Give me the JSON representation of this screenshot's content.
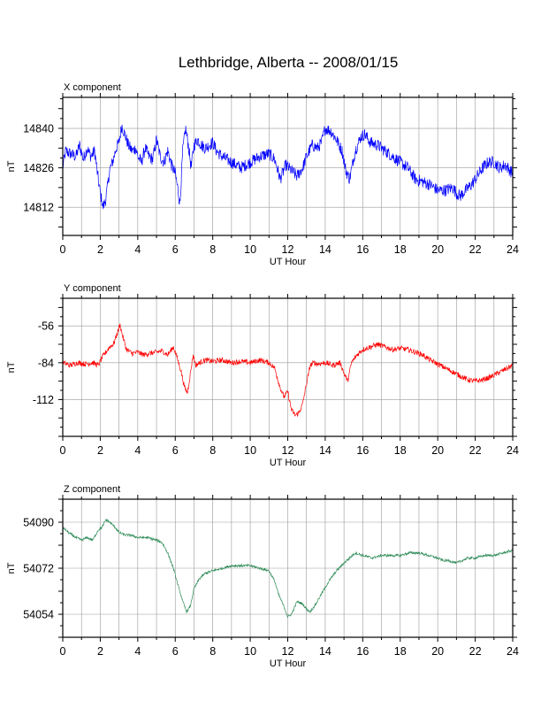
{
  "title": "Lethbridge, Alberta -- 2008/01/15",
  "chart_data": [
    {
      "type": "line",
      "panel_label": "X component",
      "xlabel": "UT Hour",
      "ylabel": "nT",
      "xlim": [
        0,
        24
      ],
      "ylim": [
        14802,
        14851
      ],
      "x_ticks": [
        "0",
        "2",
        "4",
        "6",
        "8",
        "10",
        "12",
        "14",
        "16",
        "18",
        "20",
        "22",
        "24"
      ],
      "y_ticks": [
        "14812",
        "14826",
        "14840"
      ],
      "grid": true,
      "color": "#0000ff",
      "series": [
        {
          "noise": 2.2,
          "points": [
            [
              0,
              14826
            ],
            [
              0.15,
              14832
            ],
            [
              0.4,
              14831
            ],
            [
              0.7,
              14830
            ],
            [
              0.9,
              14834
            ],
            [
              1.1,
              14829
            ],
            [
              1.3,
              14833
            ],
            [
              1.5,
              14830
            ],
            [
              1.7,
              14832
            ],
            [
              1.85,
              14824
            ],
            [
              2.0,
              14817
            ],
            [
              2.15,
              14812
            ],
            [
              2.3,
              14815
            ],
            [
              2.5,
              14825
            ],
            [
              2.7,
              14829
            ],
            [
              2.85,
              14833
            ],
            [
              3.0,
              14835
            ],
            [
              3.15,
              14841
            ],
            [
              3.3,
              14838
            ],
            [
              3.5,
              14834
            ],
            [
              3.7,
              14832
            ],
            [
              3.9,
              14833
            ],
            [
              4.0,
              14830
            ],
            [
              4.2,
              14828
            ],
            [
              4.4,
              14833
            ],
            [
              4.6,
              14830
            ],
            [
              4.8,
              14829
            ],
            [
              5.0,
              14836
            ],
            [
              5.2,
              14830
            ],
            [
              5.4,
              14828
            ],
            [
              5.6,
              14832
            ],
            [
              5.8,
              14827
            ],
            [
              6.0,
              14824
            ],
            [
              6.15,
              14818
            ],
            [
              6.25,
              14813
            ],
            [
              6.4,
              14832
            ],
            [
              6.55,
              14840
            ],
            [
              6.7,
              14834
            ],
            [
              6.85,
              14826
            ],
            [
              7.0,
              14834
            ],
            [
              7.2,
              14836
            ],
            [
              7.4,
              14834
            ],
            [
              7.6,
              14833
            ],
            [
              7.8,
              14834
            ],
            [
              8.0,
              14835
            ],
            [
              8.2,
              14832
            ],
            [
              8.5,
              14830
            ],
            [
              9.0,
              14828
            ],
            [
              9.5,
              14826
            ],
            [
              10.0,
              14828
            ],
            [
              10.5,
              14830
            ],
            [
              11.0,
              14831
            ],
            [
              11.3,
              14829
            ],
            [
              11.6,
              14822
            ],
            [
              11.9,
              14827
            ],
            [
              12.2,
              14825
            ],
            [
              12.5,
              14823
            ],
            [
              12.8,
              14826
            ],
            [
              13.0,
              14830
            ],
            [
              13.3,
              14834
            ],
            [
              13.6,
              14833
            ],
            [
              13.8,
              14835
            ],
            [
              14.0,
              14840
            ],
            [
              14.3,
              14839
            ],
            [
              14.6,
              14836
            ],
            [
              14.9,
              14832
            ],
            [
              15.1,
              14825
            ],
            [
              15.3,
              14822
            ],
            [
              15.6,
              14832
            ],
            [
              15.9,
              14837
            ],
            [
              16.1,
              14838
            ],
            [
              16.4,
              14835
            ],
            [
              16.8,
              14834
            ],
            [
              17.2,
              14832
            ],
            [
              17.6,
              14830
            ],
            [
              18.0,
              14828
            ],
            [
              18.4,
              14826
            ],
            [
              18.8,
              14822
            ],
            [
              19.2,
              14821
            ],
            [
              19.6,
              14820
            ],
            [
              20.0,
              14818
            ],
            [
              20.4,
              14818
            ],
            [
              20.8,
              14819
            ],
            [
              21.0,
              14817
            ],
            [
              21.2,
              14816
            ],
            [
              21.5,
              14818
            ],
            [
              21.8,
              14820
            ],
            [
              22.1,
              14823
            ],
            [
              22.4,
              14826
            ],
            [
              22.7,
              14828
            ],
            [
              23.0,
              14828
            ],
            [
              23.3,
              14826
            ],
            [
              23.6,
              14827
            ],
            [
              24.0,
              14824
            ]
          ]
        }
      ]
    },
    {
      "type": "line",
      "panel_label": "Y component",
      "xlabel": "UT Hour",
      "ylabel": "nT",
      "xlim": [
        0,
        24
      ],
      "ylim": [
        -140,
        -35
      ],
      "x_ticks": [
        "0",
        "2",
        "4",
        "6",
        "8",
        "10",
        "12",
        "14",
        "16",
        "18",
        "20",
        "22",
        "24"
      ],
      "y_ticks": [
        "-56",
        "-84",
        "-112"
      ],
      "grid": true,
      "color": "#ff0000",
      "series": [
        {
          "noise": 2.0,
          "points": [
            [
              0,
              -84
            ],
            [
              0.4,
              -86
            ],
            [
              0.8,
              -84
            ],
            [
              1.2,
              -85
            ],
            [
              1.6,
              -84
            ],
            [
              1.9,
              -86
            ],
            [
              2.1,
              -80
            ],
            [
              2.3,
              -76
            ],
            [
              2.5,
              -72
            ],
            [
              2.7,
              -70
            ],
            [
              2.9,
              -62
            ],
            [
              3.05,
              -55
            ],
            [
              3.2,
              -64
            ],
            [
              3.4,
              -74
            ],
            [
              3.7,
              -77
            ],
            [
              4.0,
              -76
            ],
            [
              4.3,
              -78
            ],
            [
              4.6,
              -77
            ],
            [
              5.0,
              -76
            ],
            [
              5.3,
              -75
            ],
            [
              5.6,
              -78
            ],
            [
              5.9,
              -72
            ],
            [
              6.1,
              -80
            ],
            [
              6.3,
              -90
            ],
            [
              6.5,
              -103
            ],
            [
              6.65,
              -107
            ],
            [
              6.8,
              -93
            ],
            [
              6.95,
              -78
            ],
            [
              7.1,
              -86
            ],
            [
              7.3,
              -84
            ],
            [
              7.6,
              -82
            ],
            [
              8.0,
              -83
            ],
            [
              8.5,
              -82
            ],
            [
              9.0,
              -84
            ],
            [
              9.5,
              -83
            ],
            [
              10.0,
              -84
            ],
            [
              10.5,
              -82
            ],
            [
              11.0,
              -84
            ],
            [
              11.3,
              -88
            ],
            [
              11.6,
              -103
            ],
            [
              11.8,
              -110
            ],
            [
              12.0,
              -106
            ],
            [
              12.2,
              -120
            ],
            [
              12.4,
              -124
            ],
            [
              12.6,
              -122
            ],
            [
              12.8,
              -115
            ],
            [
              13.0,
              -100
            ],
            [
              13.2,
              -86
            ],
            [
              13.4,
              -84
            ],
            [
              13.6,
              -85
            ],
            [
              14.0,
              -84
            ],
            [
              14.4,
              -86
            ],
            [
              14.8,
              -84
            ],
            [
              15.0,
              -92
            ],
            [
              15.2,
              -98
            ],
            [
              15.4,
              -84
            ],
            [
              15.7,
              -78
            ],
            [
              16.0,
              -74
            ],
            [
              16.4,
              -72
            ],
            [
              16.8,
              -70
            ],
            [
              17.2,
              -72
            ],
            [
              17.6,
              -74
            ],
            [
              18.0,
              -73
            ],
            [
              18.4,
              -74
            ],
            [
              18.8,
              -76
            ],
            [
              19.2,
              -78
            ],
            [
              19.6,
              -82
            ],
            [
              20.0,
              -85
            ],
            [
              20.4,
              -88
            ],
            [
              20.8,
              -91
            ],
            [
              21.2,
              -94
            ],
            [
              21.6,
              -97
            ],
            [
              22.0,
              -98
            ],
            [
              22.4,
              -97
            ],
            [
              22.8,
              -95
            ],
            [
              23.2,
              -92
            ],
            [
              23.6,
              -89
            ],
            [
              24.0,
              -86
            ]
          ]
        }
      ]
    },
    {
      "type": "line",
      "panel_label": "Z component",
      "xlabel": "UT Hour",
      "ylabel": "nT",
      "xlim": [
        0,
        24
      ],
      "ylim": [
        54045,
        54099
      ],
      "x_ticks": [
        "0",
        "2",
        "4",
        "6",
        "8",
        "10",
        "12",
        "14",
        "16",
        "18",
        "20",
        "22",
        "24"
      ],
      "y_ticks": [
        "54054",
        "54072",
        "54090"
      ],
      "grid": true,
      "color": "#2e8b57",
      "series": [
        {
          "noise": 0.5,
          "points": [
            [
              0,
              54088
            ],
            [
              0.3,
              54086
            ],
            [
              0.7,
              54084
            ],
            [
              1.0,
              54083
            ],
            [
              1.3,
              54084
            ],
            [
              1.6,
              54083
            ],
            [
              1.9,
              54087
            ],
            [
              2.1,
              54088
            ],
            [
              2.3,
              54091
            ],
            [
              2.5,
              54090
            ],
            [
              2.8,
              54088
            ],
            [
              3.0,
              54086
            ],
            [
              3.3,
              54085
            ],
            [
              3.6,
              54085
            ],
            [
              4.0,
              54084
            ],
            [
              4.5,
              54084
            ],
            [
              5.0,
              54083
            ],
            [
              5.3,
              54082
            ],
            [
              5.6,
              54078
            ],
            [
              5.9,
              54072
            ],
            [
              6.2,
              54064
            ],
            [
              6.4,
              54059
            ],
            [
              6.6,
              54055
            ],
            [
              6.8,
              54057
            ],
            [
              7.0,
              54064
            ],
            [
              7.3,
              54068
            ],
            [
              7.6,
              54070
            ],
            [
              8.0,
              54071
            ],
            [
              8.5,
              54072
            ],
            [
              9.0,
              54073
            ],
            [
              9.5,
              54073
            ],
            [
              10.0,
              54073
            ],
            [
              10.5,
              54072
            ],
            [
              11.0,
              54071
            ],
            [
              11.3,
              54067
            ],
            [
              11.5,
              54062
            ],
            [
              11.8,
              54057
            ],
            [
              12.0,
              54053
            ],
            [
              12.2,
              54054
            ],
            [
              12.5,
              54059
            ],
            [
              12.8,
              54058
            ],
            [
              13.0,
              54056
            ],
            [
              13.2,
              54055
            ],
            [
              13.5,
              54058
            ],
            [
              13.8,
              54062
            ],
            [
              14.2,
              54067
            ],
            [
              14.6,
              54071
            ],
            [
              15.0,
              54074
            ],
            [
              15.3,
              54076
            ],
            [
              15.6,
              54078
            ],
            [
              16.0,
              54077
            ],
            [
              16.5,
              54076
            ],
            [
              17.0,
              54077
            ],
            [
              17.5,
              54077
            ],
            [
              18.0,
              54077
            ],
            [
              18.5,
              54078
            ],
            [
              19.0,
              54078
            ],
            [
              19.5,
              54077
            ],
            [
              20.0,
              54076
            ],
            [
              20.3,
              54075
            ],
            [
              20.6,
              54075
            ],
            [
              21.0,
              54074
            ],
            [
              21.3,
              54075
            ],
            [
              21.6,
              54076
            ],
            [
              22.0,
              54076
            ],
            [
              22.5,
              54077
            ],
            [
              23.0,
              54077
            ],
            [
              23.5,
              54078
            ],
            [
              24.0,
              54079
            ]
          ]
        }
      ]
    }
  ]
}
